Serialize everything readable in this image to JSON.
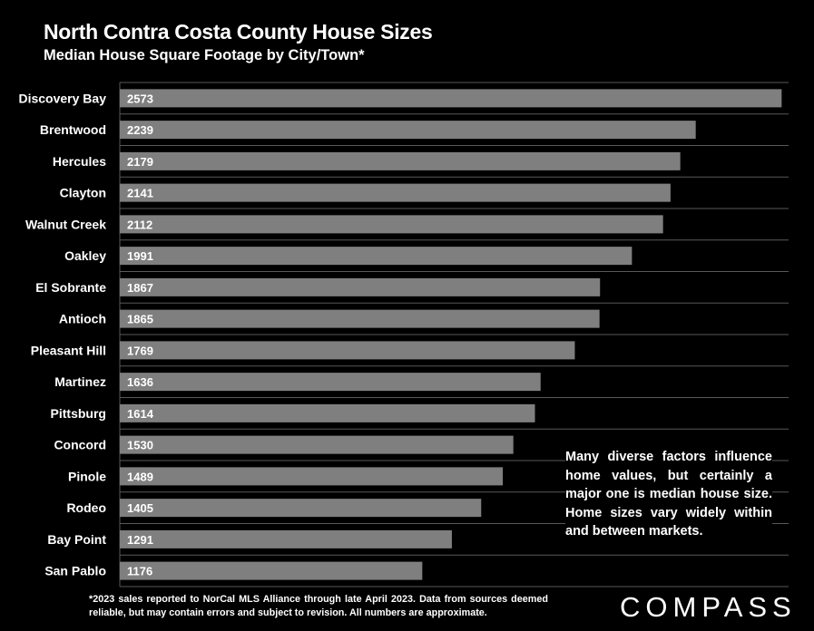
{
  "chart_data": {
    "type": "bar",
    "orientation": "horizontal",
    "title": "North Contra Costa County House Sizes",
    "subtitle": "Median House Square Footage by City/Town*",
    "categories": [
      "Discovery Bay",
      "Brentwood",
      "Hercules",
      "Clayton",
      "Walnut Creek",
      "Oakley",
      "El Sobrante",
      "Antioch",
      "Pleasant Hill",
      "Martinez",
      "Pittsburg",
      "Concord",
      "Pinole",
      "Rodeo",
      "Bay Point",
      "San Pablo"
    ],
    "values": [
      2573,
      2239,
      2179,
      2141,
      2112,
      1991,
      1867,
      1865,
      1769,
      1636,
      1614,
      1530,
      1489,
      1405,
      1291,
      1176
    ],
    "xlim": [
      0,
      2600
    ],
    "grid": true,
    "bar_color": "#7f7f7f",
    "grid_color": "#595959",
    "annotation": "Many diverse factors influence home values, but certainly a major one is median house size. Home sizes vary widely within and between markets.",
    "footnote": "*2023 sales reported to NorCal MLS Alliance through late April 2023. Data from sources deemed reliable, but may contain errors and subject to revision. All numbers are approximate."
  },
  "brand": {
    "logo_text": "COMPASS"
  }
}
